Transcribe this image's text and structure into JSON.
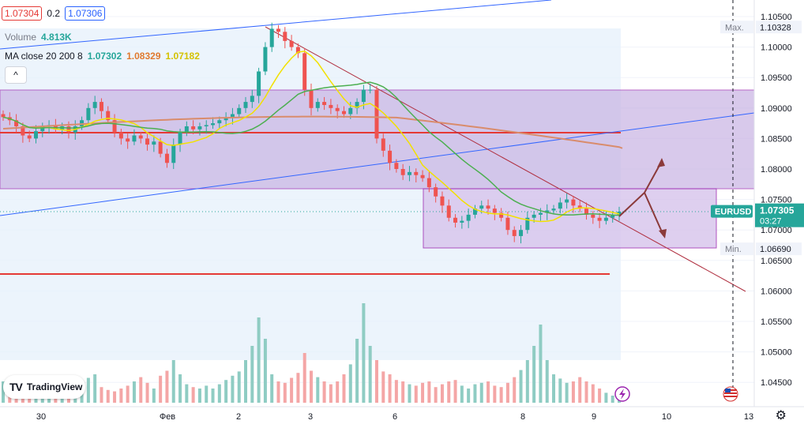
{
  "header": {
    "sell_price": "1.07304",
    "spread": "0.2",
    "buy_price": "1.07306",
    "volume_label": "Volume",
    "volume_value": "4.813K",
    "ma_label": "MA close 20 200 8",
    "ma_values": [
      "1.07302",
      "1.08329",
      "1.07182"
    ],
    "collapse_glyph": "^"
  },
  "colors": {
    "bull": "#26a69a",
    "bear": "#ef5350",
    "vol_bull": "#8fccc3",
    "vol_bear": "#f4a6a6",
    "ma20": "#f2e100",
    "ma200": "#d98c6c",
    "ma8": "#4caf50",
    "zone_fill": "#c9b6e4",
    "trendline": "#b03040",
    "channel": "#3366ff",
    "support": "#e53935",
    "arrow": "#8b3a3a"
  },
  "axis": {
    "price_ticks": [
      "1.10500",
      "1.10000",
      "1.09500",
      "1.09000",
      "1.08500",
      "1.08000",
      "1.07500",
      "1.07000",
      "1.06500",
      "1.06000",
      "1.05500",
      "1.05000",
      "1.04500"
    ],
    "max_label": "Max.",
    "max_value": "1.10328",
    "min_label": "Min.",
    "min_value": "1.06690",
    "symbol": "EURUSD",
    "current_price": "1.07305",
    "countdown": "03:27",
    "date_ticks": [
      "30",
      "Фев",
      "2",
      "3",
      "6",
      "8",
      "9",
      "10",
      "13"
    ]
  },
  "logo": {
    "text": "TradingView",
    "mark": "TV"
  },
  "chart_data": {
    "type": "candlestick",
    "symbol": "EURUSD",
    "ylim": [
      1.04,
      1.107
    ],
    "price_ticks": [
      1.105,
      1.1,
      1.095,
      1.09,
      1.085,
      1.08,
      1.075,
      1.07,
      1.065,
      1.06,
      1.055,
      1.05,
      1.045
    ],
    "x_ticks": [
      "30",
      "Фев",
      "2",
      "3",
      "6",
      "8",
      "9",
      "10",
      "13"
    ],
    "max": 1.10328,
    "min": 1.0669,
    "last": 1.07305,
    "close_series": [
      1.0885,
      1.088,
      1.087,
      1.0855,
      1.085,
      1.0862,
      1.087,
      1.0872,
      1.0865,
      1.087,
      1.086,
      1.087,
      1.088,
      1.09,
      1.091,
      1.0895,
      1.088,
      1.086,
      1.085,
      1.0845,
      1.0855,
      1.085,
      1.084,
      1.0845,
      1.0825,
      1.081,
      1.084,
      1.086,
      1.087,
      1.0865,
      1.087,
      1.0872,
      1.0875,
      1.088,
      1.0885,
      1.089,
      1.09,
      1.091,
      1.092,
      1.096,
      1.1,
      1.103,
      1.1025,
      1.101,
      1.1,
      1.099,
      1.093,
      1.09,
      1.091,
      1.0905,
      1.09,
      1.0895,
      1.089,
      1.09,
      1.091,
      1.093,
      1.093,
      1.085,
      1.083,
      1.081,
      1.08,
      1.079,
      1.0795,
      1.079,
      1.0785,
      1.077,
      1.0755,
      1.074,
      1.072,
      1.0712,
      1.0715,
      1.0725,
      1.0735,
      1.074,
      1.0735,
      1.0728,
      1.072,
      1.07,
      1.069,
      1.07,
      1.072,
      1.0725,
      1.0728,
      1.0732,
      1.0735,
      1.0745,
      1.075,
      1.074,
      1.0735,
      1.0725,
      1.072,
      1.0715,
      1.072,
      1.0725,
      1.073
    ],
    "volume_series": [
      30,
      22,
      15,
      18,
      25,
      14,
      12,
      20,
      16,
      28,
      22,
      30,
      26,
      35,
      40,
      22,
      18,
      16,
      20,
      24,
      30,
      36,
      28,
      20,
      38,
      45,
      60,
      40,
      26,
      22,
      20,
      24,
      20,
      26,
      32,
      38,
      44,
      60,
      80,
      120,
      90,
      40,
      30,
      28,
      35,
      42,
      70,
      45,
      36,
      30,
      26,
      30,
      40,
      54,
      90,
      140,
      80,
      60,
      44,
      40,
      32,
      30,
      26,
      24,
      28,
      30,
      22,
      26,
      30,
      32,
      24,
      20,
      26,
      28,
      30,
      24,
      22,
      28,
      36,
      46,
      60,
      80,
      110,
      60,
      40,
      34,
      28,
      30,
      36,
      30,
      26,
      20,
      14,
      10,
      8
    ],
    "annotations": {
      "upper_zone": [
        1.0768,
        1.093
      ],
      "lower_zone": [
        1.0665,
        1.0768
      ],
      "resistance_line": 1.086,
      "support_line": 1.0627
    }
  }
}
